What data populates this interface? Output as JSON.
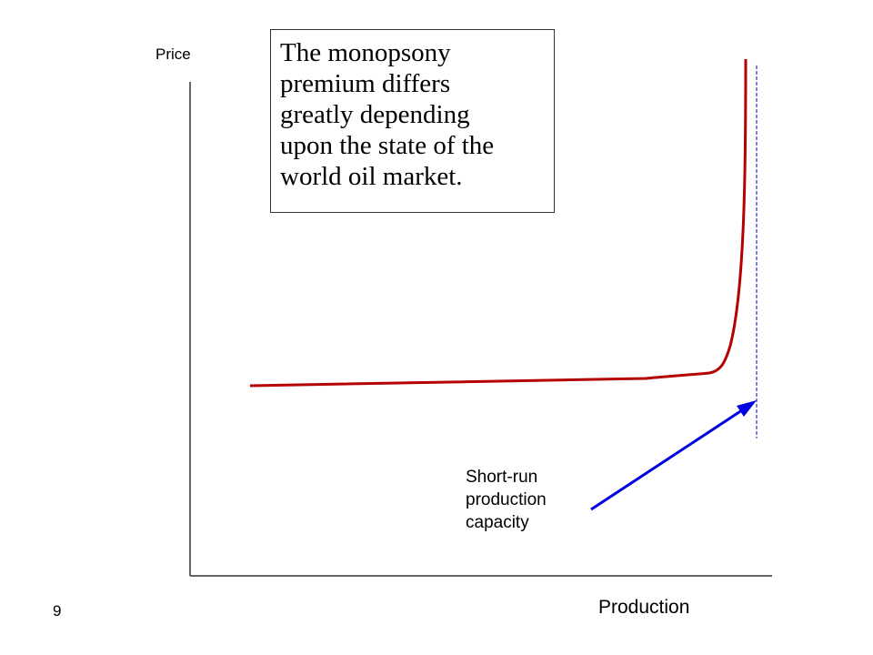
{
  "axes": {
    "y_label": "Price",
    "x_label": "Production"
  },
  "callout": {
    "lines": [
      "The monopsony",
      "premium differs",
      "greatly depending",
      "upon the state of the",
      "world oil market."
    ]
  },
  "capacity_annotation": {
    "lines": [
      "Short-run",
      "production",
      "capacity"
    ]
  },
  "slide_number": "9",
  "colors": {
    "supply_curve": "#b40000",
    "arrow": "#0000e0",
    "capacity_line": "#2233cc",
    "axes": "#333333"
  }
}
